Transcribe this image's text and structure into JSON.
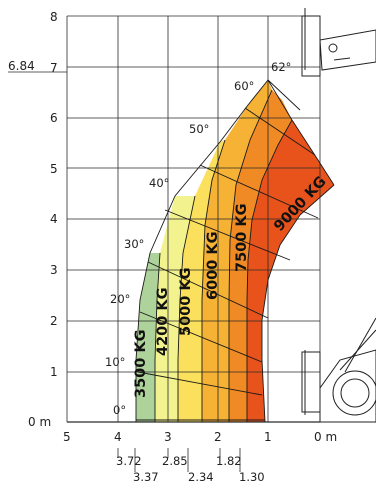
{
  "y_axis": {
    "ticks": [
      "0 m",
      "1",
      "2",
      "3",
      "4",
      "5",
      "6",
      "7",
      "8"
    ],
    "highlight_label": "6.84"
  },
  "x_axis": {
    "ticks": [
      "5",
      "4",
      "3",
      "2",
      "1",
      "0 m"
    ],
    "sub_labels_row1": [
      "3.72",
      "2.85",
      "1.82"
    ],
    "sub_labels_row2": [
      "3.37",
      "2.34",
      "1.30"
    ]
  },
  "angles": [
    "0°",
    "10°",
    "20°",
    "30°",
    "40°",
    "50°",
    "60°",
    "62°"
  ],
  "capacity_zones": [
    {
      "label": "3500 KG",
      "color": "#aed39a"
    },
    {
      "label": "4200 KG",
      "color": "#f2f28e"
    },
    {
      "label": "5000 KG",
      "color": "#fae05c"
    },
    {
      "label": "6000 KG",
      "color": "#f6b234"
    },
    {
      "label": "7500 KG",
      "color": "#f08a24"
    },
    {
      "label": "9000 KG",
      "color": "#e8531c"
    }
  ]
}
